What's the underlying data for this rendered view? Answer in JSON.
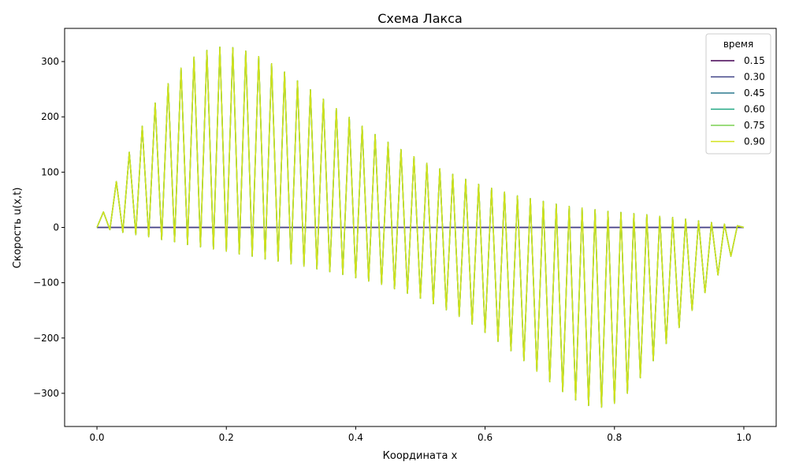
{
  "chart_data": {
    "type": "line",
    "title": "Схема Лакса",
    "xlabel": "Координата x",
    "ylabel": "Скорость u(x,t)",
    "xlim": [
      -0.05,
      1.05
    ],
    "ylim": [
      -360,
      360
    ],
    "xticks": [
      0.0,
      0.2,
      0.4,
      0.6,
      0.8,
      1.0
    ],
    "xtick_labels": [
      "0.0",
      "0.2",
      "0.4",
      "0.6",
      "0.8",
      "1.0"
    ],
    "yticks": [
      -300,
      -200,
      -100,
      0,
      100,
      200,
      300
    ],
    "ytick_labels": [
      "−300",
      "−200",
      "−100",
      "0",
      "100",
      "200",
      "300"
    ],
    "grid": false,
    "legend": {
      "title": "время",
      "placement": "top-right"
    },
    "series": [
      {
        "name": "0.15",
        "color": "#440154",
        "shape": "flat",
        "values_note": "u = 0 on [0, 1]"
      },
      {
        "name": "0.30",
        "color": "#414487",
        "shape": "flat",
        "values_note": ""
      },
      {
        "name": "0.45",
        "color": "#2a788e",
        "shape": "osc",
        "values_note": ""
      },
      {
        "name": "0.60",
        "color": "#22a884",
        "shape": "osc",
        "values_note": ""
      },
      {
        "name": "0.75",
        "color": "#7ad151",
        "shape": "osc",
        "values_note": ""
      },
      {
        "name": "0.90",
        "color": "#d2e21b",
        "shape": "osc",
        "values_note": ""
      }
    ],
    "oscillation": {
      "x_range": [
        0.0,
        1.0
      ],
      "n_points": 101,
      "upper_envelope": {
        "x": [
          0.0,
          0.01,
          0.03,
          0.05,
          0.07,
          0.09,
          0.11,
          0.13,
          0.15,
          0.17,
          0.19,
          0.21,
          0.23,
          0.25,
          0.27,
          0.29,
          0.31,
          0.33,
          0.35,
          0.37,
          0.39,
          0.41,
          0.43,
          0.45,
          0.47,
          0.49,
          0.51,
          0.53,
          0.55,
          0.57,
          0.59,
          0.61,
          0.63,
          0.65,
          0.67,
          0.69,
          0.71,
          0.73,
          0.75,
          0.77,
          0.79,
          0.81,
          0.83,
          0.85,
          0.87,
          0.89,
          0.91,
          0.93,
          0.95,
          0.97,
          0.99,
          1.0
        ],
        "y": [
          0,
          28,
          83,
          136,
          183,
          225,
          260,
          288,
          308,
          320,
          326,
          325,
          319,
          309,
          296,
          281,
          265,
          249,
          232,
          215,
          199,
          183,
          168,
          154,
          141,
          128,
          116,
          106,
          96,
          87,
          78,
          71,
          64,
          57,
          52,
          47,
          42,
          38,
          35,
          32,
          29,
          27,
          25,
          23,
          20,
          18,
          15,
          12,
          9,
          6,
          3,
          0
        ]
      },
      "lower_envelope": {
        "x": [
          0.0,
          0.02,
          0.04,
          0.06,
          0.08,
          0.1,
          0.12,
          0.14,
          0.16,
          0.18,
          0.2,
          0.22,
          0.24,
          0.26,
          0.28,
          0.3,
          0.32,
          0.34,
          0.36,
          0.38,
          0.4,
          0.42,
          0.44,
          0.46,
          0.48,
          0.5,
          0.52,
          0.54,
          0.56,
          0.58,
          0.6,
          0.62,
          0.64,
          0.66,
          0.68,
          0.7,
          0.72,
          0.74,
          0.76,
          0.78,
          0.8,
          0.82,
          0.84,
          0.86,
          0.88,
          0.9,
          0.92,
          0.94,
          0.96,
          0.98,
          1.0
        ],
        "y": [
          0,
          -4,
          -9,
          -13,
          -17,
          -22,
          -26,
          -31,
          -35,
          -39,
          -43,
          -48,
          -52,
          -57,
          -61,
          -66,
          -70,
          -75,
          -80,
          -85,
          -91,
          -97,
          -103,
          -111,
          -119,
          -128,
          -138,
          -149,
          -161,
          -175,
          -190,
          -206,
          -223,
          -241,
          -260,
          -279,
          -297,
          -312,
          -322,
          -325,
          -318,
          -300,
          -272,
          -241,
          -210,
          -181,
          -150,
          -118,
          -86,
          -52,
          0
        ]
      }
    }
  }
}
